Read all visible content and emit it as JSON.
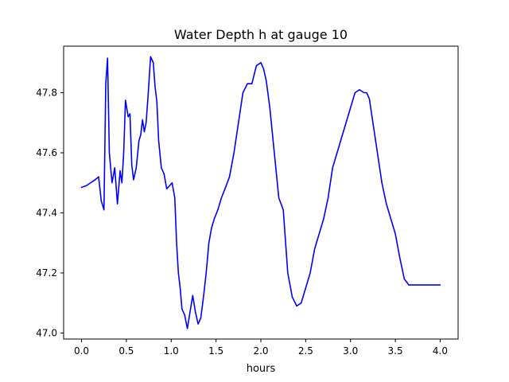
{
  "chart_data": {
    "type": "line",
    "title": "Water Depth h at gauge 10",
    "xlabel": "hours",
    "ylabel": "",
    "xlim": [
      -0.2,
      4.2
    ],
    "ylim": [
      46.98,
      47.955
    ],
    "xticks": [
      0.0,
      0.5,
      1.0,
      1.5,
      2.0,
      2.5,
      3.0,
      3.5,
      4.0
    ],
    "xtick_labels": [
      "0.0",
      "0.5",
      "1.0",
      "1.5",
      "2.0",
      "2.5",
      "3.0",
      "3.5",
      "4.0"
    ],
    "yticks": [
      47.0,
      47.2,
      47.4,
      47.6,
      47.8
    ],
    "ytick_labels": [
      "47.0",
      "47.2",
      "47.4",
      "47.6",
      "47.8"
    ],
    "grid": false,
    "series": [
      {
        "color": "#0000ff",
        "x": [
          0.0,
          0.05,
          0.1,
          0.15,
          0.19,
          0.22,
          0.25,
          0.27,
          0.29,
          0.31,
          0.34,
          0.37,
          0.4,
          0.43,
          0.45,
          0.47,
          0.49,
          0.52,
          0.54,
          0.56,
          0.58,
          0.61,
          0.64,
          0.66,
          0.68,
          0.7,
          0.72,
          0.74,
          0.77,
          0.8,
          0.82,
          0.84,
          0.86,
          0.89,
          0.92,
          0.95,
          0.98,
          1.01,
          1.04,
          1.06,
          1.08,
          1.1,
          1.12,
          1.15,
          1.18,
          1.21,
          1.24,
          1.27,
          1.3,
          1.33,
          1.36,
          1.39,
          1.42,
          1.45,
          1.48,
          1.52,
          1.56,
          1.6,
          1.65,
          1.7,
          1.75,
          1.8,
          1.85,
          1.9,
          1.95,
          2.0,
          2.03,
          2.06,
          2.1,
          2.15,
          2.2,
          2.25,
          2.3,
          2.35,
          2.4,
          2.45,
          2.5,
          2.55,
          2.6,
          2.65,
          2.7,
          2.75,
          2.8,
          2.85,
          2.9,
          2.95,
          3.0,
          3.05,
          3.1,
          3.15,
          3.18,
          3.21,
          3.25,
          3.3,
          3.35,
          3.4,
          3.45,
          3.5,
          3.55,
          3.6,
          3.65,
          3.7,
          3.75,
          3.8,
          3.85,
          3.9,
          3.95,
          4.0
        ],
        "y": [
          47.485,
          47.49,
          47.5,
          47.51,
          47.52,
          47.44,
          47.41,
          47.83,
          47.915,
          47.6,
          47.5,
          47.55,
          47.43,
          47.54,
          47.5,
          47.6,
          47.775,
          47.72,
          47.73,
          47.56,
          47.51,
          47.55,
          47.64,
          47.66,
          47.71,
          47.67,
          47.7,
          47.78,
          47.92,
          47.9,
          47.82,
          47.77,
          47.64,
          47.55,
          47.53,
          47.48,
          47.49,
          47.5,
          47.45,
          47.3,
          47.2,
          47.15,
          47.08,
          47.06,
          47.015,
          47.07,
          47.125,
          47.07,
          47.03,
          47.05,
          47.12,
          47.2,
          47.3,
          47.35,
          47.38,
          47.41,
          47.45,
          47.48,
          47.52,
          47.6,
          47.7,
          47.8,
          47.83,
          47.83,
          47.89,
          47.9,
          47.88,
          47.84,
          47.75,
          47.6,
          47.45,
          47.41,
          47.2,
          47.12,
          47.09,
          47.1,
          47.15,
          47.2,
          47.28,
          47.33,
          47.38,
          47.45,
          47.55,
          47.6,
          47.65,
          47.7,
          47.75,
          47.8,
          47.81,
          47.8,
          47.8,
          47.78,
          47.7,
          47.6,
          47.5,
          47.43,
          47.38,
          47.33,
          47.25,
          47.18,
          47.16,
          47.16,
          47.16,
          47.16,
          47.16,
          47.16,
          47.16,
          47.16
        ]
      }
    ]
  }
}
